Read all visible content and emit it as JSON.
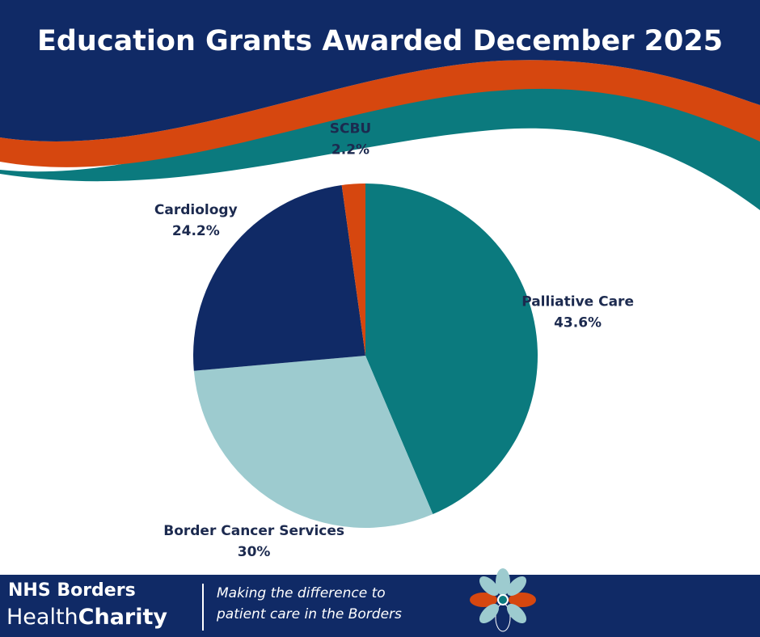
{
  "chart_data": {
    "type": "pie",
    "title": "Education Grants Awarded December 2025",
    "categories": [
      "Palliative Care",
      "Border Cancer Services",
      "Cardiology",
      "SCBU"
    ],
    "values": [
      43.6,
      30,
      24.2,
      2.2
    ],
    "value_labels": [
      "43.6%",
      "30%",
      "24.2%",
      "2.2%"
    ],
    "colors": [
      "#0b7a7e",
      "#9dcbcf",
      "#102a66",
      "#d6470f"
    ]
  },
  "footer": {
    "org_line1": "NHS Borders",
    "org_health": "Health",
    "org_charity": "Charity",
    "tagline_line1": "Making the difference to",
    "tagline_line2": "patient care in the Borders"
  }
}
